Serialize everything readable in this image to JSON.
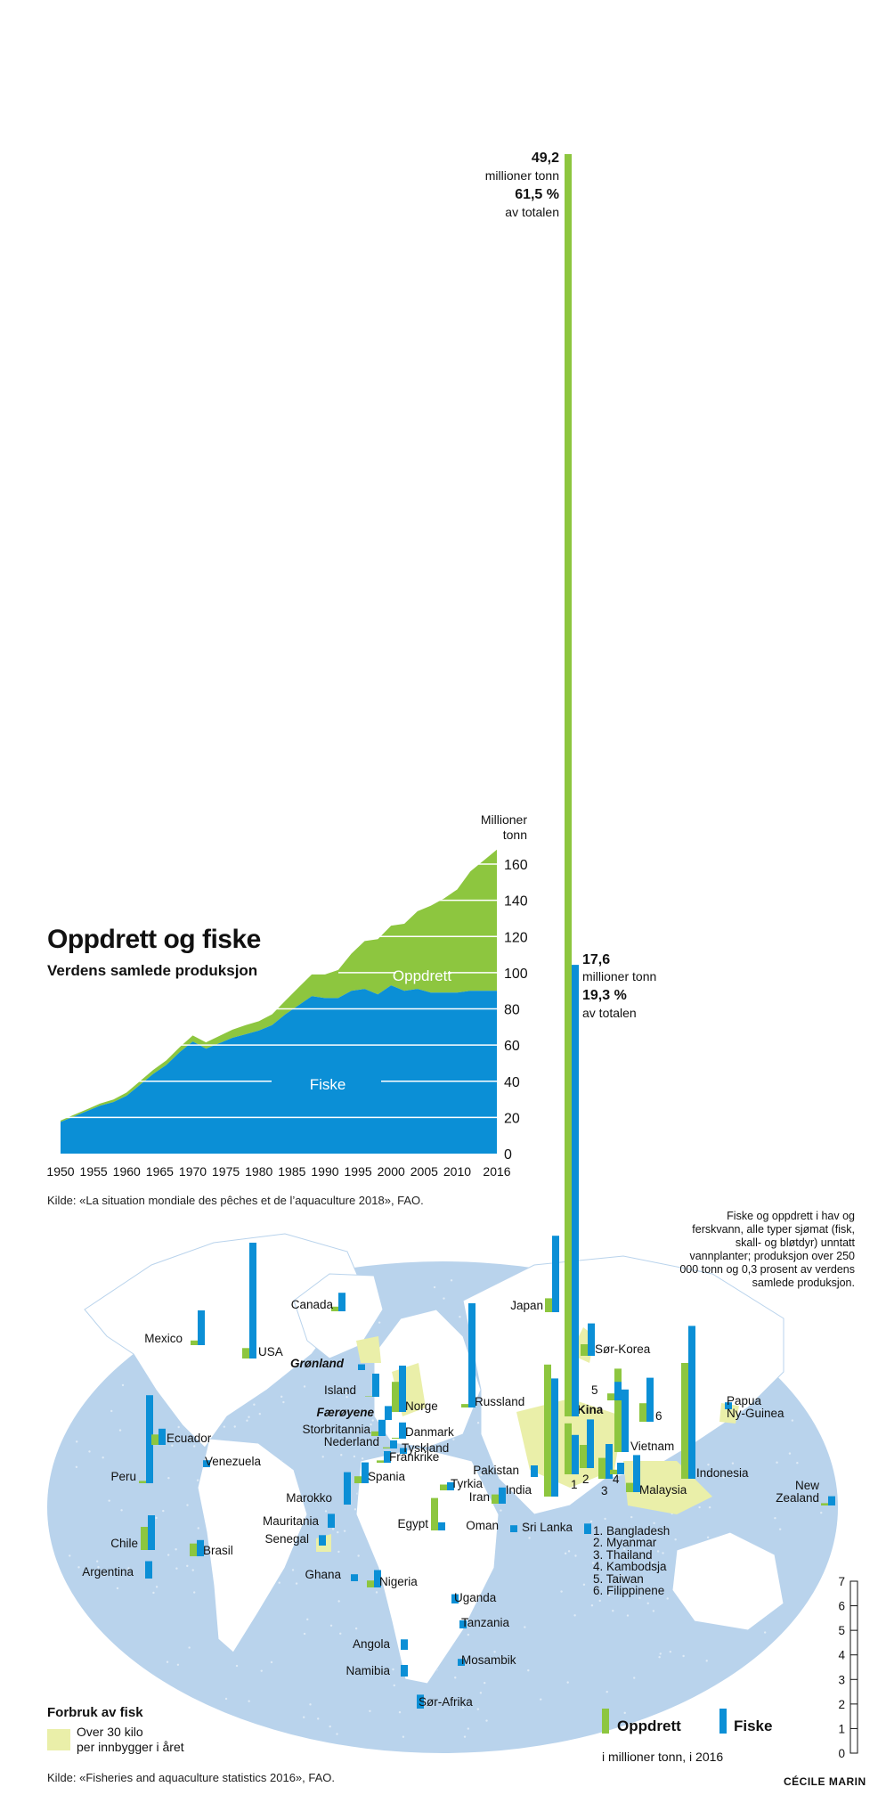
{
  "title": "Oppdrett og fiske",
  "subtitle": "Verdens samlede produksjon",
  "colors": {
    "oppdrett": "#8dc63f",
    "fiske": "#0b8fd6",
    "consumption": "#eaefa9",
    "ocean": "#b9d3ec",
    "land": "#ffffff"
  },
  "chart_data": [
    {
      "type": "area",
      "title": "Oppdrett og fiske",
      "subtitle": "Verdens samlede produksjon",
      "ylabel": "Millioner tonn",
      "xlim": [
        1950,
        2016
      ],
      "ylim": [
        0,
        170
      ],
      "yticks": [
        0,
        20,
        40,
        60,
        80,
        100,
        120,
        140,
        160
      ],
      "xticks": [
        1950,
        1955,
        1960,
        1965,
        1970,
        1975,
        1980,
        1985,
        1990,
        1995,
        2000,
        2005,
        2010,
        2016
      ],
      "grid": true,
      "x": [
        1950,
        1952,
        1954,
        1956,
        1958,
        1960,
        1962,
        1964,
        1966,
        1968,
        1970,
        1971,
        1972,
        1974,
        1976,
        1978,
        1980,
        1982,
        1984,
        1986,
        1988,
        1990,
        1992,
        1994,
        1996,
        1998,
        2000,
        2002,
        2004,
        2006,
        2008,
        2010,
        2012,
        2014,
        2016
      ],
      "series": [
        {
          "name": "Fiske",
          "values": [
            17.5,
            20.5,
            23.5,
            26.5,
            28.5,
            32,
            38,
            44,
            49,
            56,
            62,
            60,
            58,
            61,
            64,
            66,
            68,
            71,
            77,
            82,
            87,
            86,
            86,
            90,
            91,
            88,
            93,
            90,
            91,
            89,
            89,
            89,
            90,
            90,
            90
          ]
        },
        {
          "name": "Oppdrett",
          "values": [
            0.8,
            0.9,
            1,
            1.2,
            1.4,
            1.8,
            2,
            2.2,
            2.5,
            2.8,
            3.3,
            3.4,
            3.5,
            4,
            4.5,
            5,
            5.2,
            6,
            7.5,
            9.8,
            12,
            13,
            15.5,
            20.5,
            26.5,
            30.5,
            33,
            37,
            43,
            48,
            52,
            57,
            66,
            72,
            78
          ]
        }
      ],
      "annotations": [
        "Fiske",
        "Oppdrett"
      ],
      "source": "Kilde: «La situation mondiale des pêches et de l’aquaculture 2018», FAO."
    },
    {
      "type": "bar",
      "title": "",
      "ylabel": "i millioner tonn, i 2016",
      "ylim": [
        0,
        7
      ],
      "yticks": [
        0,
        1,
        2,
        3,
        4,
        5,
        6,
        7
      ],
      "legend_position": "bottom-right",
      "series_names": [
        "Oppdrett",
        "Fiske"
      ],
      "countries": [
        {
          "name": "Kina",
          "oppdrett": 49.2,
          "fiske": 17.6
        },
        {
          "name": "Indonesia",
          "oppdrett": 5.0,
          "fiske": 6.6
        },
        {
          "name": "USA",
          "oppdrett": 0.45,
          "fiske": 5.0
        },
        {
          "name": "Russland",
          "oppdrett": 0.15,
          "fiske": 4.5
        },
        {
          "name": "Peru",
          "oppdrett": 0.1,
          "fiske": 3.8
        },
        {
          "name": "India",
          "oppdrett": 5.7,
          "fiske": 5.1
        },
        {
          "name": "Japan",
          "oppdrett": 0.6,
          "fiske": 3.3
        },
        {
          "name": "Norge",
          "oppdrett": 1.3,
          "fiske": 2.0
        },
        {
          "name": "Vietnam",
          "oppdrett": 3.6,
          "fiske": 2.7
        },
        {
          "name": "Bangladesh",
          "oppdrett": 2.2,
          "fiske": 1.7
        },
        {
          "name": "Myanmar",
          "oppdrett": 1.0,
          "fiske": 2.1
        },
        {
          "name": "Thailand",
          "oppdrett": 0.9,
          "fiske": 1.5
        },
        {
          "name": "Kambodsja",
          "oppdrett": 0.2,
          "fiske": 0.5
        },
        {
          "name": "Taiwan",
          "oppdrett": 0.3,
          "fiske": 0.8
        },
        {
          "name": "Filippinene",
          "oppdrett": 0.8,
          "fiske": 1.9
        },
        {
          "name": "Malaysia",
          "oppdrett": 0.4,
          "fiske": 1.6
        },
        {
          "name": "Sør-Korea",
          "oppdrett": 0.5,
          "fiske": 1.4
        },
        {
          "name": "Mexico",
          "oppdrett": 0.2,
          "fiske": 1.5
        },
        {
          "name": "Chile",
          "oppdrett": 1.0,
          "fiske": 1.5
        },
        {
          "name": "Marokko",
          "oppdrett": 0.0,
          "fiske": 1.4
        },
        {
          "name": "Egypt",
          "oppdrett": 1.4,
          "fiske": 0.35
        },
        {
          "name": "Canada",
          "oppdrett": 0.2,
          "fiske": 0.8
        },
        {
          "name": "Island",
          "oppdrett": 0.02,
          "fiske": 1.0
        },
        {
          "name": "Storbritannia",
          "oppdrett": 0.2,
          "fiske": 0.7
        },
        {
          "name": "Danmark",
          "oppdrett": 0.04,
          "fiske": 0.7
        },
        {
          "name": "Spania",
          "oppdrett": 0.3,
          "fiske": 0.9
        },
        {
          "name": "Ecuador",
          "oppdrett": 0.45,
          "fiske": 0.7
        },
        {
          "name": "Iran",
          "oppdrett": 0.4,
          "fiske": 0.7
        },
        {
          "name": "Nigeria",
          "oppdrett": 0.3,
          "fiske": 0.75
        },
        {
          "name": "Mauritania",
          "oppdrett": 0.0,
          "fiske": 0.6
        },
        {
          "name": "Brasil",
          "oppdrett": 0.55,
          "fiske": 0.7
        },
        {
          "name": "Pakistan",
          "oppdrett": 0.0,
          "fiske": 0.5
        },
        {
          "name": "Papua Ny-Guinea",
          "oppdrett": 0.0,
          "fiske": 0.3
        },
        {
          "name": "Frankrike",
          "oppdrett": 0.1,
          "fiske": 0.5
        },
        {
          "name": "Nederland",
          "oppdrett": 0.05,
          "fiske": 0.35
        },
        {
          "name": "Grønland",
          "oppdrett": 0.0,
          "fiske": 0.25
        },
        {
          "name": "Færøyene",
          "oppdrett": 0.0,
          "fiske": 0.6
        },
        {
          "name": "Tyskland",
          "oppdrett": 0.0,
          "fiske": 0.25
        },
        {
          "name": "Venezuela",
          "oppdrett": 0.0,
          "fiske": 0.3
        },
        {
          "name": "Tyrkia",
          "oppdrett": 0.25,
          "fiske": 0.35
        },
        {
          "name": "Senegal",
          "oppdrett": 0.0,
          "fiske": 0.45
        },
        {
          "name": "Ghana",
          "oppdrett": 0.0,
          "fiske": 0.3
        },
        {
          "name": "Oman",
          "oppdrett": 0.0,
          "fiske": 0.3
        },
        {
          "name": "Sri Lanka",
          "oppdrett": 0.0,
          "fiske": 0.45
        },
        {
          "name": "Argentina",
          "oppdrett": 0.0,
          "fiske": 0.75
        },
        {
          "name": "Uganda",
          "oppdrett": 0.0,
          "fiske": 0.4
        },
        {
          "name": "Tanzania",
          "oppdrett": 0.0,
          "fiske": 0.35
        },
        {
          "name": "Angola",
          "oppdrett": 0.0,
          "fiske": 0.45
        },
        {
          "name": "Mosambik",
          "oppdrett": 0.0,
          "fiske": 0.3
        },
        {
          "name": "Namibia",
          "oppdrett": 0.0,
          "fiske": 0.5
        },
        {
          "name": "Sør-Afrika",
          "oppdrett": 0.0,
          "fiske": 0.6
        },
        {
          "name": "New Zealand",
          "oppdrett": 0.1,
          "fiske": 0.4
        }
      ]
    }
  ],
  "area_labels": {
    "millioner": "Millioner",
    "tonn": "tonn",
    "fiske": "Fiske",
    "oppdrett": "Oppdrett"
  },
  "kina_annotation": {
    "value1": "49,2",
    "unit1": "millioner tonn",
    "pct1": "61,5 %",
    "of1": "av totalen"
  },
  "india_annotation": {
    "value2": "17,6",
    "unit2": "millioner tonn",
    "pct2": "19,3 %",
    "of2": "av totalen"
  },
  "source1": "Kilde: «La situation mondiale des pêches et de l’aquaculture 2018», FAO.",
  "source2": "Kilde: «Fisheries and aquaculture statistics 2016», FAO.",
  "note": "Fiske og oppdrett i hav og ferskvann, alle typer sjømat (fisk, skall- og bløtdyr) unntatt vannplanter; produksjon over 250 000 tonn og 0,3 prosent av verdens samlede produksjon.",
  "numbered_list": [
    "1. Bangladesh",
    "2. Myanmar",
    "3. Thailand",
    "4. Kambodsja",
    "5. Taiwan",
    "6. Filippinene"
  ],
  "legend": {
    "title": "Forbruk av fisk",
    "line1": "Over 30 kilo",
    "line2": "per innbygger i året",
    "oppdrett": "Oppdrett",
    "fiske": "Fiske",
    "unit": "i millioner tonn, i 2016"
  },
  "credit": "Cécile Marin"
}
